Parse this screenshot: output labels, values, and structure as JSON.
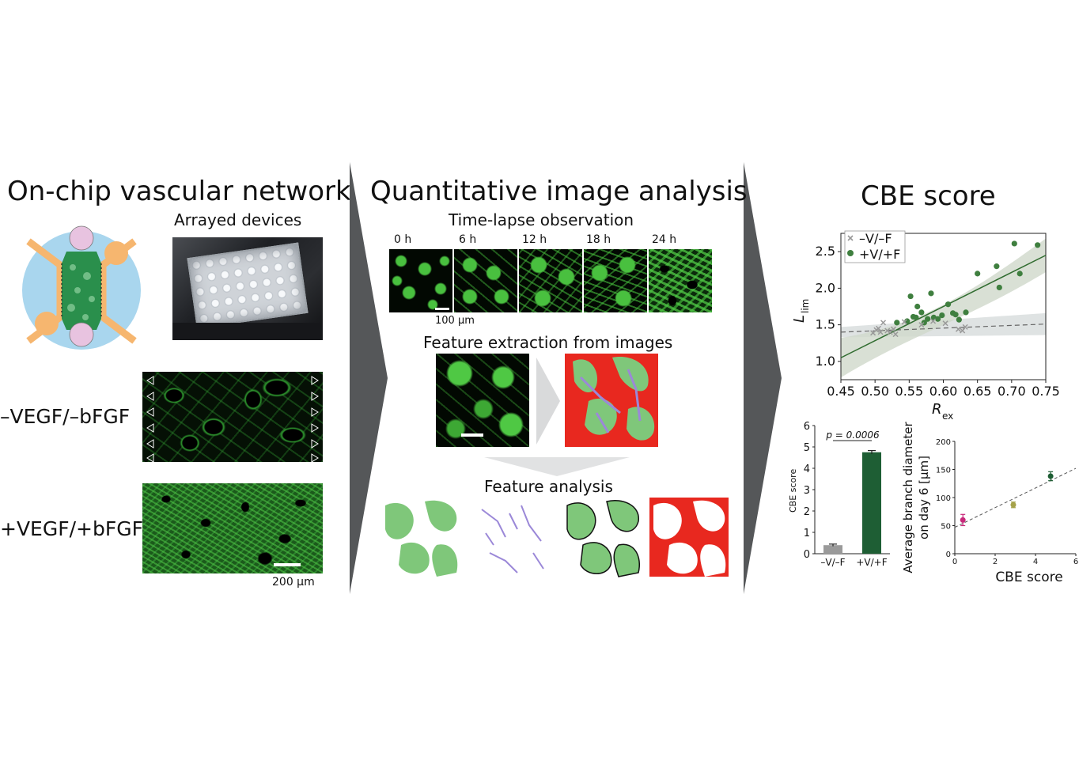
{
  "panels": {
    "left": {
      "title": "On-chip vascular network",
      "arrayed_label": "Arrayed devices",
      "cond_minus": "–VEGF/–bFGF",
      "cond_plus": "+VEGF/+bFGF",
      "scale_bar": "200 µm"
    },
    "middle": {
      "title": "Quantitative image analysis",
      "timelapse_label": "Time-lapse observation",
      "time_labels": [
        "0 h",
        "6 h",
        "12 h",
        "18 h",
        "24 h"
      ],
      "scale_bar": "100 µm",
      "extraction_label": "Feature extraction from images",
      "analysis_label": "Feature analysis"
    },
    "right": {
      "title": "CBE score"
    }
  },
  "chart_data": [
    {
      "type": "scatter",
      "xlabel": "R",
      "xlabel_sub": "ex",
      "ylabel": "L",
      "ylabel_sub": "lim",
      "xlim": [
        0.45,
        0.75
      ],
      "ylim": [
        0.75,
        2.75
      ],
      "x_ticks": [
        "0.45",
        "0.50",
        "0.55",
        "0.60",
        "0.65",
        "0.70",
        "0.75"
      ],
      "y_ticks": [
        "1.0",
        "1.5",
        "2.0",
        "2.5"
      ],
      "legend_position": "top-left",
      "series": [
        {
          "name": "–V/–F",
          "color": "#999999",
          "marker": "x",
          "points": [
            [
              0.497,
              1.39
            ],
            [
              0.502,
              1.43
            ],
            [
              0.505,
              1.45
            ],
            [
              0.508,
              1.4
            ],
            [
              0.512,
              1.53
            ],
            [
              0.518,
              1.42
            ],
            [
              0.522,
              1.4
            ],
            [
              0.527,
              1.44
            ],
            [
              0.53,
              1.37
            ],
            [
              0.543,
              1.54
            ],
            [
              0.568,
              1.5
            ],
            [
              0.585,
              1.55
            ],
            [
              0.603,
              1.52
            ],
            [
              0.622,
              1.44
            ],
            [
              0.628,
              1.42
            ],
            [
              0.632,
              1.47
            ]
          ],
          "fit": [
            [
              0.45,
              1.4
            ],
            [
              0.75,
              1.51
            ]
          ]
        },
        {
          "name": "+V/+F",
          "color": "#3f7f3f",
          "marker": "circle",
          "points": [
            [
              0.532,
              1.53
            ],
            [
              0.547,
              1.55
            ],
            [
              0.552,
              1.89
            ],
            [
              0.556,
              1.61
            ],
            [
              0.56,
              1.6
            ],
            [
              0.562,
              1.75
            ],
            [
              0.568,
              1.67
            ],
            [
              0.572,
              1.53
            ],
            [
              0.577,
              1.58
            ],
            [
              0.582,
              1.93
            ],
            [
              0.586,
              1.6
            ],
            [
              0.592,
              1.58
            ],
            [
              0.598,
              1.63
            ],
            [
              0.607,
              1.78
            ],
            [
              0.614,
              1.66
            ],
            [
              0.618,
              1.64
            ],
            [
              0.623,
              1.57
            ],
            [
              0.633,
              1.67
            ],
            [
              0.65,
              2.2
            ],
            [
              0.678,
              2.3
            ],
            [
              0.682,
              2.01
            ],
            [
              0.704,
              2.61
            ],
            [
              0.712,
              2.2
            ],
            [
              0.738,
              2.59
            ]
          ],
          "fit": [
            [
              0.45,
              1.05
            ],
            [
              0.75,
              2.45
            ]
          ]
        }
      ]
    },
    {
      "type": "bar",
      "ylabel": "CBE score",
      "categories": [
        "–V/–F",
        "+V/+F"
      ],
      "values": [
        0.4,
        4.75
      ],
      "errors": [
        0.05,
        0.08
      ],
      "colors": [
        "#9a9a9a",
        "#1e5e34"
      ],
      "ylim": [
        0,
        6
      ],
      "y_ticks": [
        "0",
        "1",
        "2",
        "3",
        "4",
        "5",
        "6"
      ],
      "annotation": "p = 0.0006"
    },
    {
      "type": "scatter",
      "xlabel": "CBE score",
      "ylabel": "Average branch diameter on day 6 [µm]",
      "xlim": [
        0,
        6
      ],
      "ylim": [
        0,
        200
      ],
      "x_ticks": [
        "0",
        "2",
        "4",
        "6"
      ],
      "y_ticks": [
        "0",
        "50",
        "100",
        "150",
        "200"
      ],
      "points": [
        {
          "x": 0.4,
          "y": 60,
          "err": 10,
          "color": "#c8287a"
        },
        {
          "x": 2.9,
          "y": 87,
          "err": 5,
          "color": "#a5a24a"
        },
        {
          "x": 4.75,
          "y": 138,
          "err": 8,
          "color": "#1e5e34"
        }
      ],
      "fit": [
        [
          0,
          47
        ],
        [
          6,
          152
        ]
      ]
    }
  ]
}
